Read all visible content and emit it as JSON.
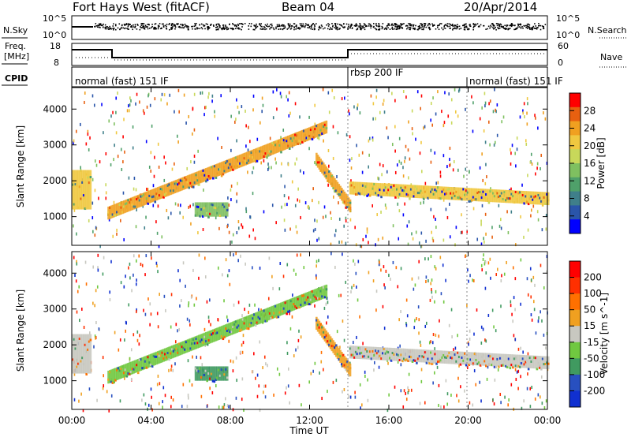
{
  "header": {
    "station": "Fort Hays West (fitACF)",
    "beam": "Beam 04",
    "date": "20/Apr/2014"
  },
  "panels": {
    "nsky_label": "N.Sky",
    "nsearch_label": "N.Search",
    "noise_ticks_left": [
      "10^5",
      "10^0"
    ],
    "noise_ticks_right": [
      "10^5",
      "10^0"
    ],
    "freq_label_1": "Freq.",
    "freq_label_2": "[MHz]",
    "freq_ticks": [
      "18",
      "8"
    ],
    "nave_label": "Nave",
    "nave_ticks": [
      "60",
      "0"
    ],
    "cpid_label": "CPID",
    "cpid_segments": [
      "normal (fast) 151 IF",
      "rbsp 200 IF",
      "normal (fast) 151 IF"
    ]
  },
  "chart_data": [
    {
      "type": "heatmap",
      "ylabel": "Slant Range [km]",
      "xlabel": "Time UT",
      "x_ticks": [
        "00:00",
        "04:00",
        "08:00",
        "12:00",
        "16:00",
        "20:00",
        "00:00"
      ],
      "y_ticks": [
        "1000",
        "2000",
        "3000",
        "4000"
      ],
      "xlim_hours": [
        0,
        24
      ],
      "ylim_km": [
        200,
        4600
      ],
      "colorbar": {
        "label": "Power [dB]",
        "ticks": [
          "28",
          "24",
          "20",
          "16",
          "12",
          "8",
          "4"
        ],
        "range": [
          0,
          30
        ]
      },
      "features": [
        {
          "t_start": 0.0,
          "t_end": 0.9,
          "range_km": [
            1200,
            2300
          ],
          "value": 18
        },
        {
          "t_start": 1.8,
          "t_end": 12.8,
          "range_km_start": 1100,
          "range_km_end": 3500,
          "value": 22
        },
        {
          "t_start": 6.2,
          "t_end": 7.8,
          "range_km": [
            1000,
            1400
          ],
          "value": 12
        },
        {
          "t_start": 12.3,
          "t_end": 14.0,
          "range_km_start": 2600,
          "range_km_end": 1300,
          "value": 22
        },
        {
          "t_start": 14.0,
          "t_end": 24.0,
          "range_km_start": 1800,
          "range_km_end": 1500,
          "value": 18
        }
      ]
    },
    {
      "type": "heatmap",
      "ylabel": "Slant Range [km]",
      "xlabel": "Time UT",
      "x_ticks": [
        "00:00",
        "04:00",
        "08:00",
        "12:00",
        "16:00",
        "20:00",
        "00:00"
      ],
      "y_ticks": [
        "1000",
        "2000",
        "3000",
        "4000"
      ],
      "xlim_hours": [
        0,
        24
      ],
      "ylim_km": [
        200,
        4600
      ],
      "colorbar": {
        "label": "Velocity [m s^-1]",
        "ticks": [
          "200",
          "100",
          "50",
          "15",
          "-15",
          "-50",
          "-100",
          "-200"
        ],
        "range": [
          -250,
          250
        ]
      },
      "features": [
        {
          "t_start": 0.0,
          "t_end": 0.9,
          "range_km": [
            1200,
            2300
          ],
          "value": 0
        },
        {
          "t_start": 1.8,
          "t_end": 12.8,
          "range_km_start": 1100,
          "range_km_end": 3500,
          "value": -60
        },
        {
          "t_start": 6.2,
          "t_end": 7.8,
          "range_km": [
            1000,
            1400
          ],
          "value": -120
        },
        {
          "t_start": 12.3,
          "t_end": 14.0,
          "range_km_start": 2600,
          "range_km_end": 1300,
          "value": 30
        },
        {
          "t_start": 14.0,
          "t_end": 24.0,
          "range_km_start": 1800,
          "range_km_end": 1500,
          "value": 0
        }
      ]
    }
  ],
  "colors": {
    "power_scale": [
      "#0000ff",
      "#2a55aa",
      "#3f7f8a",
      "#4fa06a",
      "#7fc060",
      "#c8d85a",
      "#f0c840",
      "#f0a020",
      "#e86010",
      "#ff0000"
    ],
    "velocity_scale": [
      "#1030d0",
      "#2850c0",
      "#409a60",
      "#70c840",
      "#c8c8c0",
      "#f0a020",
      "#ff7000",
      "#ff3000",
      "#ff0000"
    ]
  }
}
